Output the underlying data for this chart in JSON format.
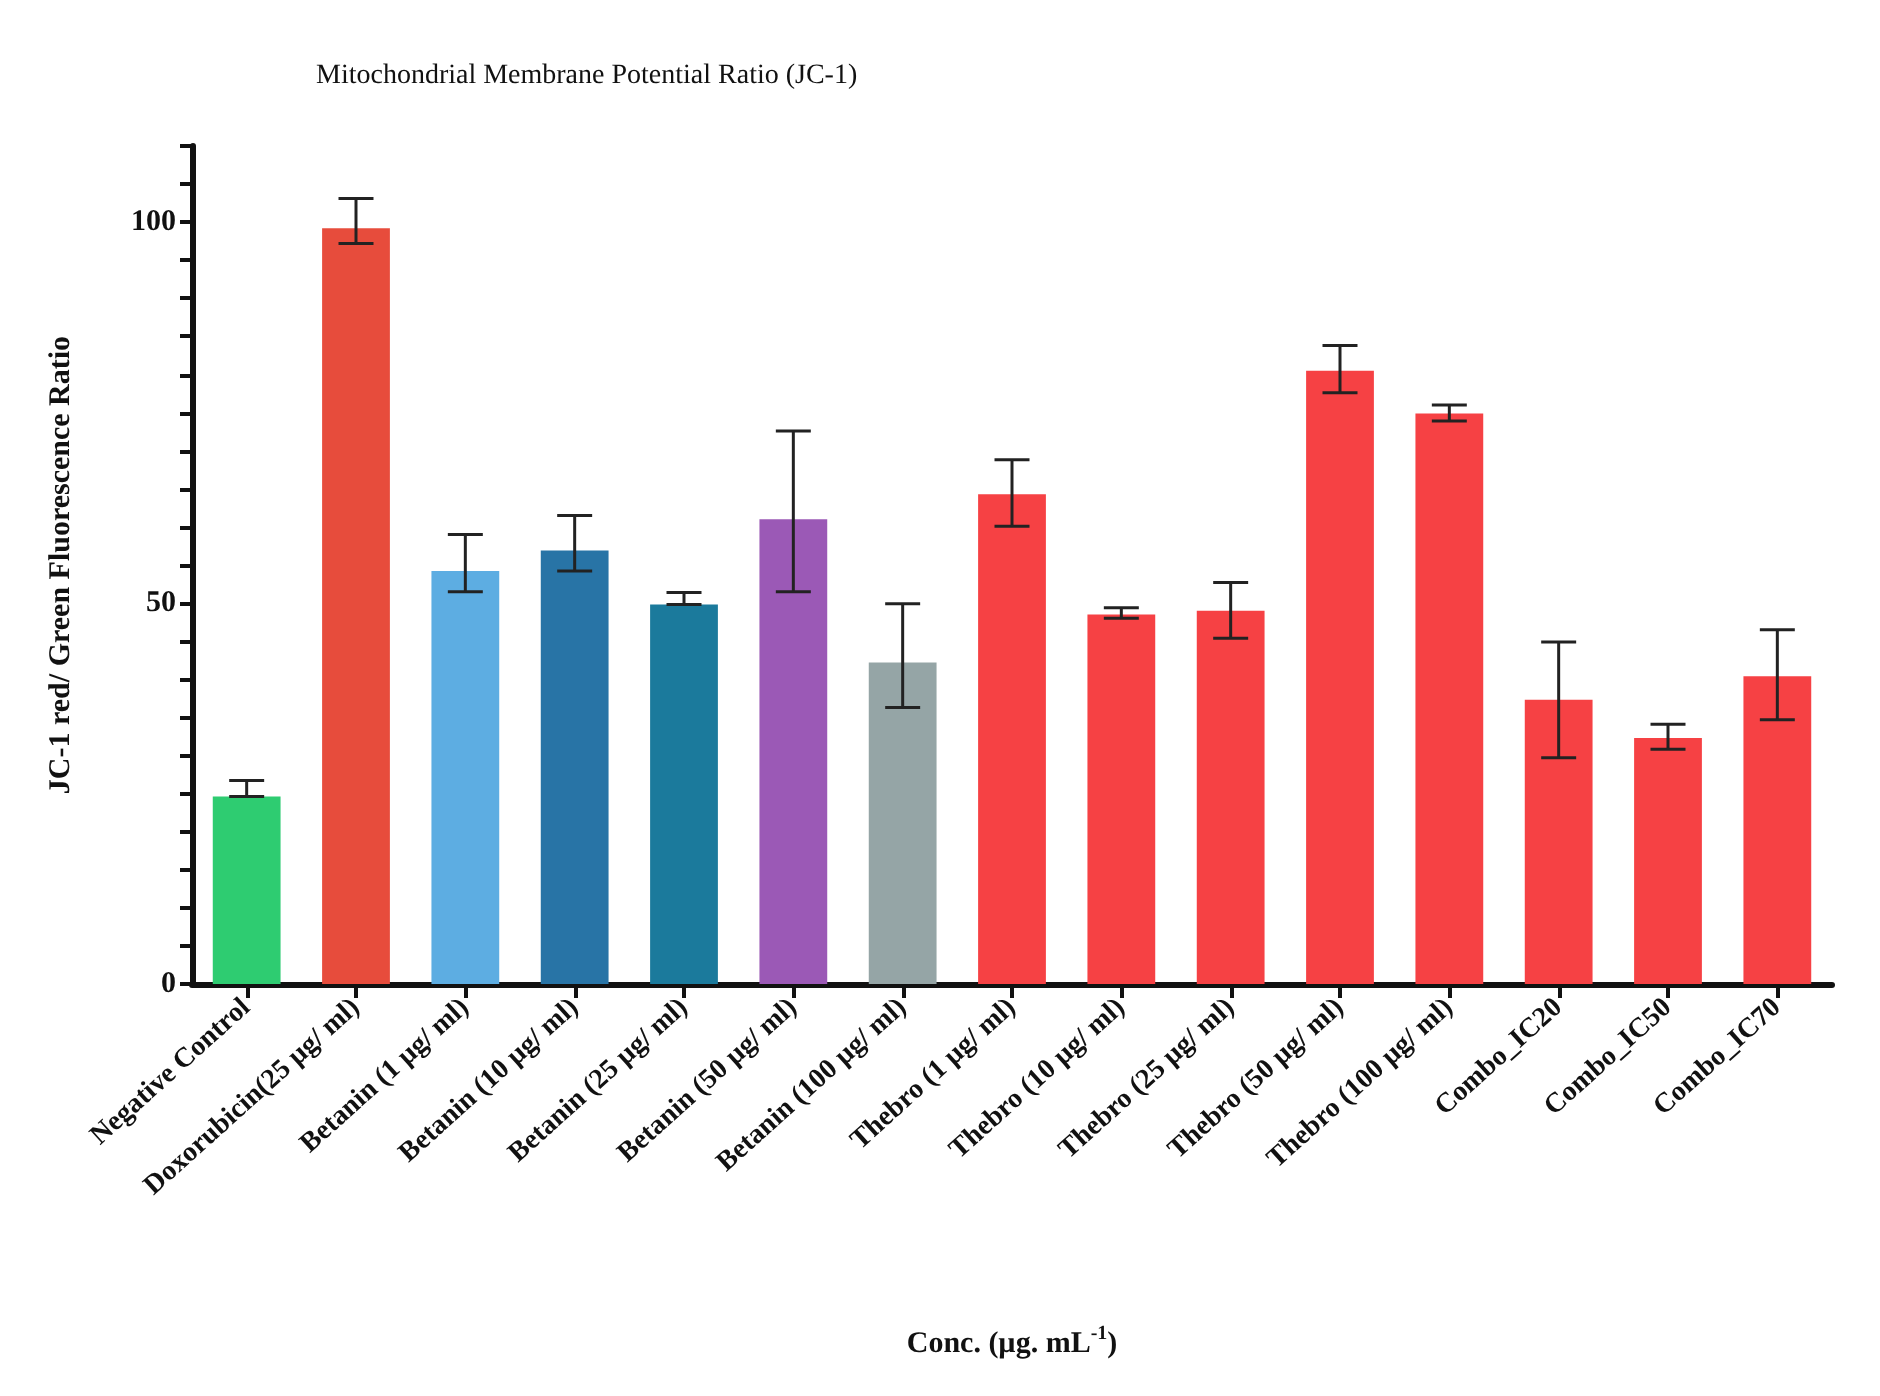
{
  "chart_data": {
    "type": "bar",
    "title": "Mitochondrial Membrane Potential Ratio (JC-1)",
    "xlabel": "Conc. (µg. mL$^{-1}$)",
    "ylabel": "JC-1 red/ Green Fluorescence Ratio",
    "categories": [
      "Negative Control",
      "Doxorubicin(25 µg/ ml)",
      "Betanin (1 µg/ ml)",
      "Betanin (10 µg/ ml)",
      "Betanin (25 µg/ ml)",
      "Betanin (50 µg/ ml)",
      "Betanin (100 µg/ ml)",
      "Thebro (1 µg/ ml)",
      "Thebro (10 µg/ ml)",
      "Thebro (25 µg/ ml)",
      "Thebro (50 µg/ ml)",
      "Thebro (100 µg/ ml)",
      "Combo_IC20",
      "Combo_IC50",
      "Combo_IC70"
    ],
    "values": [
      24.6,
      99.2,
      54.2,
      56.9,
      49.8,
      61.0,
      42.2,
      64.3,
      48.5,
      49.0,
      80.5,
      74.9,
      37.3,
      32.3,
      40.4
    ],
    "errors": [
      [
        24.6,
        26.7
      ],
      [
        97.2,
        103.1
      ],
      [
        51.5,
        59.0
      ],
      [
        54.2,
        61.5
      ],
      [
        49.8,
        51.4
      ],
      [
        51.5,
        72.6
      ],
      [
        36.3,
        49.9
      ],
      [
        60.1,
        68.8
      ],
      [
        48.0,
        49.4
      ],
      [
        45.4,
        52.7
      ],
      [
        77.6,
        83.8
      ],
      [
        73.9,
        76.0
      ],
      [
        29.7,
        44.9
      ],
      [
        30.8,
        34.1
      ],
      [
        34.7,
        46.5
      ]
    ],
    "colors": [
      "#2ecc71",
      "#e74c3c",
      "#5dade2",
      "#2874a6",
      "#1b7a9c",
      "#9b59b6",
      "#95a5a6",
      "#f64144",
      "#f64144",
      "#f64144",
      "#f64144",
      "#f64144",
      "#f64144",
      "#f64144",
      "#f64144"
    ],
    "ylim": [
      0,
      110
    ],
    "yticks": [
      0,
      {
        "value": 5,
        "label": null
      },
      {
        "value": 10,
        "label": null
      },
      {
        "value": 15,
        "label": null
      },
      {
        "value": 20,
        "label": null
      },
      {
        "value": 25,
        "label": null
      },
      {
        "value": 30,
        "label": null
      },
      {
        "value": 35,
        "label": null
      },
      {
        "value": 40,
        "label": null
      },
      {
        "value": 45,
        "label": null
      },
      50,
      {
        "value": 55,
        "label": null
      },
      {
        "value": 60,
        "label": null
      },
      {
        "value": 65,
        "label": null
      },
      {
        "value": 70,
        "label": null
      },
      {
        "value": 75,
        "label": null
      },
      {
        "value": 80,
        "label": null
      },
      {
        "value": 85,
        "label": null
      },
      {
        "value": 90,
        "label": null
      },
      {
        "value": 95,
        "label": null
      },
      100,
      {
        "value": 105,
        "label": null
      },
      {
        "value": 110,
        "label": null
      }
    ],
    "grid": false
  }
}
